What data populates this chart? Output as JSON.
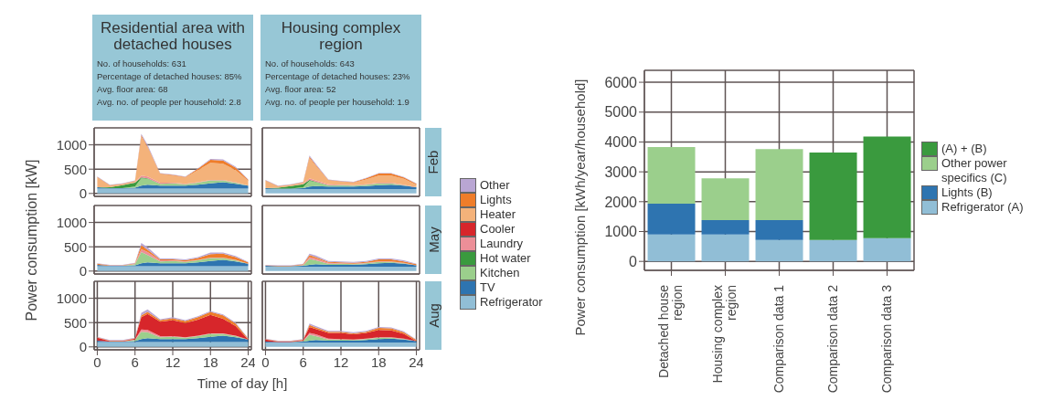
{
  "chart_data": [
    {
      "type": "area",
      "stacked": true,
      "title": "Residential area with detached houses",
      "annotations": [
        "No. of households: 631",
        "Percentage of detached houses: 85%",
        "Avg. floor area: 68",
        "Avg. no. of people per household: 2.8"
      ],
      "tick_labels": "y",
      "grid": true,
      "xlim": [
        -0.5,
        24.5
      ],
      "ylim": [
        -60,
        1350
      ],
      "xticks": [
        0,
        6,
        12,
        18,
        24
      ],
      "yticks": [
        0,
        500,
        1000
      ],
      "x": [
        0,
        2,
        4,
        6,
        7,
        8,
        10,
        12,
        14,
        16,
        18,
        20,
        22,
        24
      ],
      "series": [
        {
          "color": "#91bed6",
          "values": [
            100,
            100,
            100,
            100,
            100,
            100,
            100,
            100,
            100,
            100,
            100,
            100,
            100,
            100
          ]
        },
        {
          "color": "#2e74b0",
          "values": [
            30,
            10,
            10,
            20,
            60,
            80,
            60,
            60,
            60,
            80,
            110,
            130,
            100,
            60
          ]
        },
        {
          "color": "#9bcf8c",
          "values": [
            0,
            0,
            0,
            20,
            150,
            120,
            40,
            50,
            30,
            40,
            60,
            40,
            20,
            0
          ]
        },
        {
          "color": "#3a9a3e",
          "values": [
            0,
            20,
            60,
            80,
            20,
            10,
            0,
            0,
            0,
            0,
            0,
            0,
            0,
            0
          ]
        },
        {
          "color": "#ec8f98",
          "values": [
            0,
            0,
            0,
            10,
            40,
            40,
            20,
            10,
            10,
            10,
            10,
            10,
            10,
            0
          ]
        },
        {
          "color": "#f4b27a",
          "values": [
            200,
            30,
            20,
            20,
            800,
            600,
            180,
            150,
            130,
            250,
            350,
            330,
            250,
            100
          ]
        },
        {
          "color": "#ef7d2a",
          "values": [
            10,
            10,
            10,
            10,
            30,
            20,
            10,
            10,
            10,
            30,
            60,
            70,
            50,
            20
          ]
        },
        {
          "color": "#b9a6d3",
          "values": [
            10,
            10,
            10,
            10,
            30,
            30,
            10,
            10,
            10,
            10,
            20,
            20,
            20,
            10
          ]
        }
      ]
    },
    {
      "type": "area",
      "stacked": true,
      "title": "Housing complex region",
      "annotations": [
        "No. of households: 643",
        "Percentage of detached houses: 23%",
        "Avg. floor area: 52",
        "Avg. no. of people per household: 1.9"
      ],
      "y2label": "Feb",
      "tick_labels": false,
      "grid": true,
      "xlim": [
        -0.5,
        24.5
      ],
      "ylim": [
        -60,
        1350
      ],
      "xticks": [
        0,
        6,
        12,
        18,
        24
      ],
      "yticks": [
        0,
        500,
        1000
      ],
      "x": [
        0,
        2,
        4,
        6,
        7,
        8,
        10,
        12,
        14,
        16,
        18,
        20,
        22,
        24
      ],
      "series": [
        {
          "color": "#91bed6",
          "values": [
            90,
            90,
            90,
            90,
            90,
            90,
            90,
            90,
            90,
            90,
            90,
            90,
            90,
            90
          ]
        },
        {
          "color": "#2e74b0",
          "values": [
            20,
            10,
            10,
            20,
            50,
            60,
            50,
            50,
            50,
            60,
            80,
            90,
            70,
            40
          ]
        },
        {
          "color": "#9bcf8c",
          "values": [
            0,
            0,
            0,
            20,
            120,
            80,
            30,
            30,
            20,
            30,
            40,
            30,
            10,
            0
          ]
        },
        {
          "color": "#3a9a3e",
          "values": [
            0,
            20,
            50,
            60,
            20,
            10,
            0,
            0,
            0,
            0,
            0,
            0,
            0,
            0
          ]
        },
        {
          "color": "#ec8f98",
          "values": [
            0,
            0,
            0,
            10,
            30,
            30,
            20,
            10,
            10,
            10,
            10,
            10,
            10,
            0
          ]
        },
        {
          "color": "#f4b27a",
          "values": [
            150,
            20,
            20,
            20,
            420,
            300,
            80,
            60,
            50,
            100,
            150,
            150,
            120,
            50
          ]
        },
        {
          "color": "#ef7d2a",
          "values": [
            10,
            10,
            10,
            10,
            30,
            20,
            10,
            10,
            10,
            20,
            40,
            40,
            30,
            20
          ]
        },
        {
          "color": "#b9a6d3",
          "values": [
            10,
            10,
            10,
            10,
            20,
            20,
            10,
            10,
            10,
            10,
            10,
            10,
            10,
            10
          ]
        }
      ]
    },
    {
      "type": "area",
      "stacked": true,
      "ylabel": "Power consumption [kW]",
      "tick_labels": "y",
      "grid": true,
      "xlim": [
        -0.5,
        24.5
      ],
      "ylim": [
        -60,
        1350
      ],
      "xticks": [
        0,
        6,
        12,
        18,
        24
      ],
      "yticks": [
        0,
        500,
        1000
      ],
      "x": [
        0,
        2,
        4,
        6,
        7,
        8,
        10,
        12,
        14,
        16,
        18,
        20,
        22,
        24
      ],
      "series": [
        {
          "color": "#91bed6",
          "values": [
            100,
            100,
            100,
            100,
            100,
            100,
            100,
            100,
            100,
            100,
            100,
            100,
            100,
            100
          ]
        },
        {
          "color": "#2e74b0",
          "values": [
            30,
            10,
            10,
            20,
            60,
            80,
            60,
            60,
            60,
            80,
            110,
            130,
            100,
            50
          ]
        },
        {
          "color": "#9bcf8c",
          "values": [
            0,
            0,
            0,
            20,
            230,
            150,
            40,
            50,
            30,
            40,
            60,
            40,
            20,
            0
          ]
        },
        {
          "color": "#ec8f98",
          "values": [
            0,
            0,
            0,
            10,
            60,
            60,
            20,
            10,
            10,
            10,
            10,
            10,
            10,
            0
          ]
        },
        {
          "color": "#ef7d2a",
          "values": [
            20,
            10,
            10,
            10,
            80,
            50,
            20,
            20,
            20,
            40,
            70,
            80,
            60,
            30
          ]
        },
        {
          "color": "#b9a6d3",
          "values": [
            10,
            10,
            10,
            10,
            50,
            50,
            20,
            20,
            20,
            20,
            30,
            20,
            20,
            10
          ]
        }
      ]
    },
    {
      "type": "area",
      "stacked": true,
      "y2label": "May",
      "legend": "right",
      "tick_labels": false,
      "grid": true,
      "xlim": [
        -0.5,
        24.5
      ],
      "ylim": [
        -60,
        1350
      ],
      "xticks": [
        0,
        6,
        12,
        18,
        24
      ],
      "yticks": [
        0,
        500,
        1000
      ],
      "x": [
        0,
        2,
        4,
        6,
        7,
        8,
        10,
        12,
        14,
        16,
        18,
        20,
        22,
        24
      ],
      "series": [
        {
          "name": "Refrigerator",
          "color": "#91bed6",
          "values": [
            90,
            90,
            90,
            90,
            90,
            90,
            90,
            90,
            90,
            90,
            90,
            90,
            90,
            90
          ]
        },
        {
          "name": "TV",
          "color": "#2e74b0",
          "values": [
            20,
            10,
            10,
            20,
            40,
            50,
            40,
            40,
            40,
            50,
            70,
            80,
            60,
            30
          ]
        },
        {
          "name": "Kitchen",
          "color": "#9bcf8c",
          "values": [
            0,
            0,
            0,
            10,
            120,
            80,
            20,
            20,
            10,
            20,
            30,
            20,
            10,
            0
          ]
        },
        {
          "name": "Hot water",
          "color": "#3a9a3e",
          "values": [
            null,
            null,
            null,
            null,
            null,
            null,
            null,
            null,
            null,
            null,
            null,
            null,
            null,
            null
          ]
        },
        {
          "name": "Laundry",
          "color": "#ec8f98",
          "values": [
            0,
            0,
            0,
            10,
            40,
            40,
            20,
            10,
            10,
            10,
            10,
            10,
            10,
            0
          ]
        },
        {
          "name": "Cooler",
          "color": "#d7262b",
          "values": [
            null,
            null,
            null,
            null,
            null,
            null,
            null,
            null,
            null,
            null,
            null,
            null,
            null,
            null
          ]
        },
        {
          "name": "Heater",
          "color": "#f4b27a",
          "values": [
            null,
            null,
            null,
            null,
            null,
            null,
            null,
            null,
            null,
            null,
            null,
            null,
            null,
            null
          ]
        },
        {
          "name": "Lights",
          "color": "#ef7d2a",
          "values": [
            10,
            10,
            10,
            10,
            40,
            30,
            20,
            20,
            20,
            20,
            40,
            40,
            30,
            20
          ]
        },
        {
          "name": "Other",
          "color": "#b9a6d3",
          "values": [
            10,
            10,
            10,
            10,
            30,
            30,
            20,
            20,
            20,
            20,
            20,
            20,
            20,
            10
          ]
        }
      ]
    },
    {
      "type": "area",
      "stacked": true,
      "xlabel": "Time of day [h]",
      "grid": true,
      "xlim": [
        -0.5,
        24.5
      ],
      "ylim": [
        -60,
        1350
      ],
      "xticks": [
        0,
        6,
        12,
        18,
        24
      ],
      "yticks": [
        0,
        500,
        1000
      ],
      "x": [
        0,
        2,
        4,
        6,
        7,
        8,
        10,
        12,
        14,
        16,
        18,
        20,
        22,
        24
      ],
      "series": [
        {
          "color": "#91bed6",
          "values": [
            100,
            100,
            100,
            100,
            100,
            100,
            100,
            100,
            100,
            100,
            100,
            100,
            100,
            100
          ]
        },
        {
          "color": "#2e74b0",
          "values": [
            30,
            10,
            10,
            20,
            60,
            80,
            60,
            60,
            60,
            80,
            110,
            130,
            100,
            50
          ]
        },
        {
          "color": "#9bcf8c",
          "values": [
            0,
            0,
            0,
            20,
            150,
            120,
            40,
            50,
            30,
            40,
            60,
            40,
            20,
            0
          ]
        },
        {
          "color": "#ec8f98",
          "values": [
            0,
            0,
            0,
            10,
            50,
            50,
            20,
            10,
            10,
            10,
            10,
            10,
            10,
            0
          ]
        },
        {
          "color": "#d7262b",
          "values": [
            60,
            10,
            10,
            20,
            250,
            330,
            300,
            330,
            290,
            330,
            380,
            300,
            200,
            0
          ]
        },
        {
          "color": "#ef7d2a",
          "values": [
            10,
            10,
            10,
            10,
            40,
            40,
            30,
            40,
            40,
            50,
            60,
            70,
            50,
            20
          ]
        },
        {
          "color": "#b9a6d3",
          "values": [
            10,
            10,
            10,
            10,
            50,
            50,
            20,
            20,
            20,
            20,
            20,
            20,
            20,
            10
          ]
        }
      ]
    },
    {
      "type": "area",
      "stacked": true,
      "y2label": "Aug",
      "tick_labels": "x",
      "grid": true,
      "xlim": [
        -0.5,
        24.5
      ],
      "ylim": [
        -60,
        1350
      ],
      "xticks": [
        0,
        6,
        12,
        18,
        24
      ],
      "yticks": [
        0,
        500,
        1000
      ],
      "x": [
        0,
        2,
        4,
        6,
        7,
        8,
        10,
        12,
        14,
        16,
        18,
        20,
        22,
        24
      ],
      "series": [
        {
          "color": "#91bed6",
          "values": [
            90,
            90,
            90,
            90,
            90,
            90,
            90,
            90,
            90,
            90,
            90,
            90,
            90,
            90
          ]
        },
        {
          "color": "#2e74b0",
          "values": [
            20,
            10,
            10,
            20,
            40,
            50,
            40,
            40,
            40,
            50,
            70,
            80,
            60,
            30
          ]
        },
        {
          "color": "#9bcf8c",
          "values": [
            0,
            0,
            0,
            10,
            120,
            80,
            20,
            20,
            10,
            20,
            30,
            20,
            10,
            0
          ]
        },
        {
          "color": "#ec8f98",
          "values": [
            0,
            0,
            0,
            10,
            40,
            40,
            20,
            10,
            10,
            10,
            10,
            10,
            10,
            0
          ]
        },
        {
          "color": "#d7262b",
          "values": [
            40,
            10,
            10,
            10,
            120,
            110,
            120,
            130,
            110,
            120,
            150,
            140,
            100,
            0
          ]
        },
        {
          "color": "#ef7d2a",
          "values": [
            10,
            10,
            10,
            10,
            40,
            30,
            20,
            20,
            20,
            20,
            40,
            40,
            30,
            20
          ]
        },
        {
          "color": "#b9a6d3",
          "values": [
            10,
            10,
            10,
            10,
            30,
            30,
            20,
            20,
            20,
            20,
            20,
            20,
            20,
            10
          ]
        }
      ]
    },
    {
      "type": "bar",
      "stacked": true,
      "ylabel": "Power consumption [kWh/year/household]",
      "legend": "right",
      "grid": true,
      "ylim": [
        -300,
        6400
      ],
      "yticks": [
        0,
        1000,
        2000,
        3000,
        4000,
        5000,
        6000
      ],
      "categories": [
        "Detached house region",
        "Housing complex region",
        "Comparison data 1",
        "Comparison data 2",
        "Comparison data 3"
      ],
      "series": [
        {
          "name": "Refrigerator (A)",
          "color": "#91bed6",
          "values": [
            900,
            900,
            720,
            720,
            780
          ]
        },
        {
          "name": "Lights (B)",
          "color": "#2e74b0",
          "values": [
            1030,
            480,
            660,
            null,
            null
          ]
        },
        {
          "name": "Other power specifics (C)",
          "color": "#9bcf8c",
          "values": [
            1900,
            1400,
            2380,
            null,
            null
          ]
        },
        {
          "name": "(A) + (B)",
          "color": "#3a9a3e",
          "values": [
            null,
            null,
            null,
            2930,
            3400
          ]
        }
      ]
    }
  ]
}
